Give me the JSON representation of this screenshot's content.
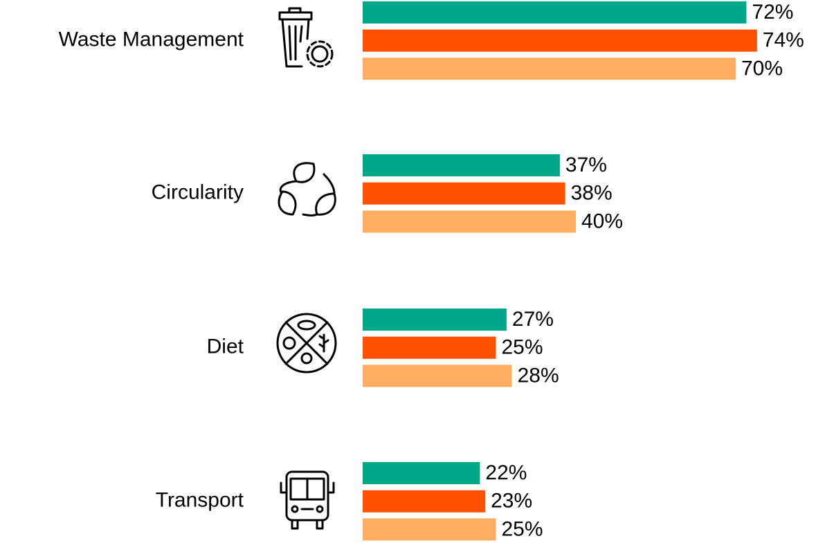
{
  "chart_data": {
    "type": "bar",
    "orientation": "horizontal",
    "categories": [
      "Waste Management",
      "Circularity",
      "Diet",
      "Transport"
    ],
    "series": [
      {
        "color": "#00a88a",
        "values": [
          72,
          37,
          27,
          22
        ],
        "value_labels": [
          "72%",
          "37%",
          "27%",
          "22%"
        ]
      },
      {
        "color": "#ff5000",
        "values": [
          74,
          38,
          25,
          23
        ],
        "value_labels": [
          "74%",
          "38%",
          "25%",
          "23%"
        ]
      },
      {
        "color": "#ffad60",
        "values": [
          70,
          40,
          28,
          25
        ],
        "value_labels": [
          "70%",
          "40%",
          "28%",
          "25%"
        ]
      }
    ]
  }
}
